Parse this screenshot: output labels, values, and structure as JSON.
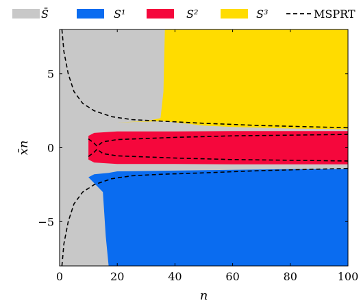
{
  "chart_data": {
    "type": "area",
    "title": "",
    "xlabel": "n",
    "ylabel": "x̄n",
    "xlim": [
      0,
      100
    ],
    "ylim": [
      -8,
      8
    ],
    "xticks": [
      0,
      20,
      40,
      60,
      80,
      100
    ],
    "yticks": [
      -5,
      0,
      5
    ],
    "ytick_labels": [
      "−5",
      "0",
      "5"
    ],
    "grid": false,
    "legend_position": "top",
    "legend": [
      {
        "label": "S̄",
        "color": "#c8c8c8",
        "kind": "patch"
      },
      {
        "label": "S¹",
        "color": "#0a6cf0",
        "kind": "patch"
      },
      {
        "label": "S²",
        "color": "#f5073c",
        "kind": "patch"
      },
      {
        "label": "S³",
        "color": "#ffdc00",
        "kind": "patch"
      },
      {
        "label": "MSPRT",
        "color": "#000000",
        "kind": "dashed-line"
      }
    ],
    "series": [
      {
        "name": "S³",
        "color": "#ffdc00",
        "lower_boundary": [
          [
            20,
            1.7
          ],
          [
            36,
            1.8
          ],
          [
            50,
            1.5
          ],
          [
            60,
            1.4
          ],
          [
            80,
            1.3
          ],
          [
            100,
            1.25
          ]
        ],
        "x_start_left": [
          [
            20,
            1.7
          ],
          [
            25,
            1.75
          ],
          [
            30,
            1.8
          ],
          [
            35,
            2.0
          ],
          [
            36,
            3.8
          ],
          [
            36.5,
            8
          ]
        ]
      },
      {
        "name": "S²",
        "color": "#f5073c",
        "upper_boundary": [
          [
            10,
            0.8
          ],
          [
            12,
            1.0
          ],
          [
            20,
            1.1
          ],
          [
            40,
            1.1
          ],
          [
            60,
            1.12
          ],
          [
            80,
            1.12
          ],
          [
            100,
            1.12
          ]
        ],
        "lower_boundary": [
          [
            10,
            -0.8
          ],
          [
            12,
            -1.0
          ],
          [
            20,
            -1.1
          ],
          [
            40,
            -1.1
          ],
          [
            60,
            -1.12
          ],
          [
            80,
            -1.12
          ],
          [
            100,
            -1.12
          ]
        ]
      },
      {
        "name": "S¹",
        "color": "#0a6cf0",
        "upper_boundary": [
          [
            10,
            -2.0
          ],
          [
            12,
            -1.8
          ],
          [
            17,
            -1.7
          ],
          [
            20,
            -1.6
          ],
          [
            40,
            -1.55
          ],
          [
            60,
            -1.5
          ],
          [
            80,
            -1.45
          ],
          [
            100,
            -1.45
          ]
        ],
        "x_start_left": [
          [
            10,
            -2.0
          ],
          [
            15,
            -3.0
          ],
          [
            16,
            -6.0
          ],
          [
            17,
            -8
          ]
        ]
      },
      {
        "name": "MSPRT",
        "color": "#000000",
        "upper_curve": [
          [
            0.8,
            8
          ],
          [
            1.5,
            6.5
          ],
          [
            3,
            5.0
          ],
          [
            5,
            3.8
          ],
          [
            8,
            3.0
          ],
          [
            12,
            2.5
          ],
          [
            18,
            2.1
          ],
          [
            25,
            1.9
          ],
          [
            35,
            1.8
          ],
          [
            50,
            1.65
          ],
          [
            70,
            1.5
          ],
          [
            100,
            1.35
          ]
        ],
        "lower_curve": [
          [
            0.8,
            -8
          ],
          [
            1.5,
            -6.5
          ],
          [
            3,
            -5.0
          ],
          [
            5,
            -3.8
          ],
          [
            8,
            -3.0
          ],
          [
            12,
            -2.5
          ],
          [
            18,
            -2.1
          ],
          [
            25,
            -1.9
          ],
          [
            35,
            -1.8
          ],
          [
            50,
            -1.7
          ],
          [
            70,
            -1.55
          ],
          [
            100,
            -1.4
          ]
        ],
        "inner_upper_curve": [
          [
            10,
            0.6
          ],
          [
            12,
            0.3
          ],
          [
            13,
            0.1
          ],
          [
            15,
            0.4
          ],
          [
            20,
            0.55
          ],
          [
            40,
            0.7
          ],
          [
            60,
            0.8
          ],
          [
            80,
            0.85
          ],
          [
            100,
            0.9
          ]
        ],
        "inner_lower_curve": [
          [
            10,
            -0.6
          ],
          [
            12,
            -0.3
          ],
          [
            13,
            -0.1
          ],
          [
            15,
            -0.4
          ],
          [
            20,
            -0.55
          ],
          [
            40,
            -0.7
          ],
          [
            60,
            -0.8
          ],
          [
            80,
            -0.85
          ],
          [
            100,
            -0.9
          ]
        ]
      }
    ]
  }
}
